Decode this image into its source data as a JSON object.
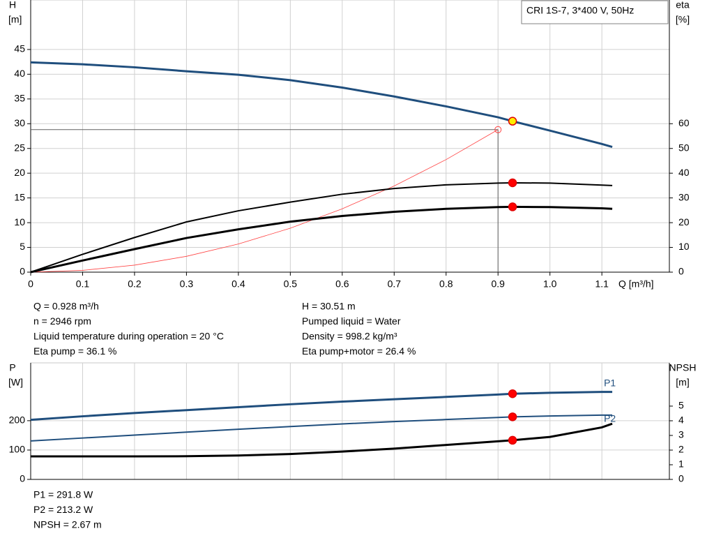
{
  "chart_data": [
    {
      "type": "line",
      "annotation": "CRI 1S-7, 3*400 V, 50Hz",
      "ylabel": [
        "H",
        "[m]"
      ],
      "y2label": [
        "eta",
        "[%]"
      ],
      "xlabel": "Q [m³/h]",
      "xlim": [
        0,
        1.23
      ],
      "ylim": [
        0,
        55
      ],
      "y2lim": [
        0,
        110
      ],
      "xticks": [
        0,
        0.1,
        0.2,
        0.3,
        0.4,
        0.5,
        0.6,
        0.7,
        0.8,
        0.9,
        {
          "value": 1,
          "label": "1.0"
        },
        1.1
      ],
      "yticks": [
        0,
        5,
        10,
        15,
        20,
        25,
        30,
        35,
        40,
        45
      ],
      "y2ticks": [
        0,
        10,
        20,
        30,
        40,
        50,
        60
      ],
      "grid": true,
      "duty_x": 0.928,
      "x": [
        0,
        0.1,
        0.2,
        0.3,
        0.4,
        0.5,
        0.6,
        0.7,
        0.8,
        0.9,
        0.928,
        1.0,
        1.1,
        1.12
      ],
      "series": [
        {
          "color": "#1f4e7d",
          "width": 3,
          "marker_color": "#ffee00",
          "values": [
            42.4,
            42.0,
            41.4,
            40.6,
            39.9,
            38.8,
            37.3,
            35.5,
            33.5,
            31.3,
            30.51,
            28.6,
            25.9,
            25.3
          ]
        },
        {
          "color": "#000000",
          "width": 2,
          "axis": "y2",
          "marker_color": "#ff0000",
          "values": [
            0,
            7.2,
            14.0,
            20.3,
            24.8,
            28.3,
            31.5,
            33.8,
            35.3,
            36.0,
            36.1,
            36.0,
            35.2,
            35.0
          ]
        },
        {
          "color": "#000000",
          "width": 3,
          "axis": "y2",
          "marker_color": "#ff0000",
          "values": [
            0,
            4.7,
            9.3,
            13.8,
            17.3,
            20.4,
            22.7,
            24.4,
            25.6,
            26.3,
            26.4,
            26.3,
            25.8,
            25.6
          ]
        }
      ],
      "system_curve": {
        "color": "#ff4040",
        "x": [
          0,
          0.1,
          0.2,
          0.3,
          0.4,
          0.5,
          0.6,
          0.7,
          0.8,
          0.9
        ],
        "values": [
          0,
          0.36,
          1.42,
          3.2,
          5.69,
          8.89,
          12.8,
          17.42,
          22.75,
          28.8
        ]
      }
    },
    {
      "type": "line",
      "ylabel": [
        "P",
        "[W]"
      ],
      "y2label": [
        "NPSH",
        "[m]"
      ],
      "xlim": [
        0,
        1.23
      ],
      "ylim": [
        0,
        397
      ],
      "y2lim": [
        0,
        7.95
      ],
      "yticks": [
        0,
        100,
        200
      ],
      "y2ticks": [
        0,
        1,
        2,
        3,
        4,
        5
      ],
      "grid": true,
      "duty_x": 0.928,
      "x": [
        0,
        0.1,
        0.2,
        0.3,
        0.4,
        0.5,
        0.6,
        0.7,
        0.8,
        0.9,
        0.928,
        1.0,
        1.1,
        1.12
      ],
      "series": [
        {
          "name": "P1",
          "color": "#1f4e7d",
          "width": 3,
          "marker_color": "#ff0000",
          "values": [
            203,
            215,
            226,
            236,
            246,
            256,
            265,
            273,
            281,
            289,
            291.8,
            295,
            298,
            298
          ]
        },
        {
          "name": "P2",
          "color": "#1f4e7d",
          "width": 2,
          "marker_color": "#ff0000",
          "values": [
            131,
            141,
            151,
            161,
            171,
            180,
            189,
            197,
            204,
            211,
            213.2,
            216,
            219,
            219
          ]
        },
        {
          "color": "#000000",
          "width": 3,
          "axis": "y2",
          "marker_color": "#ff0000",
          "values": [
            1.57,
            1.57,
            1.57,
            1.58,
            1.63,
            1.73,
            1.9,
            2.1,
            2.35,
            2.6,
            2.67,
            2.9,
            3.55,
            3.8
          ]
        }
      ]
    }
  ],
  "readout_top": [
    [
      "Q = 0.928 m³/h",
      "n = 2946 rpm",
      "Liquid temperature during operation = 20 °C",
      "Eta pump = 36.1 %"
    ],
    [
      "H = 30.51 m",
      "Pumped liquid = Water",
      "Density = 998.2 kg/m³",
      "Eta pump+motor = 26.4 %"
    ]
  ],
  "readout_bottom": [
    "P1 = 291.8 W",
    "P2 = 213.2 W",
    "NPSH = 2.67 m"
  ]
}
